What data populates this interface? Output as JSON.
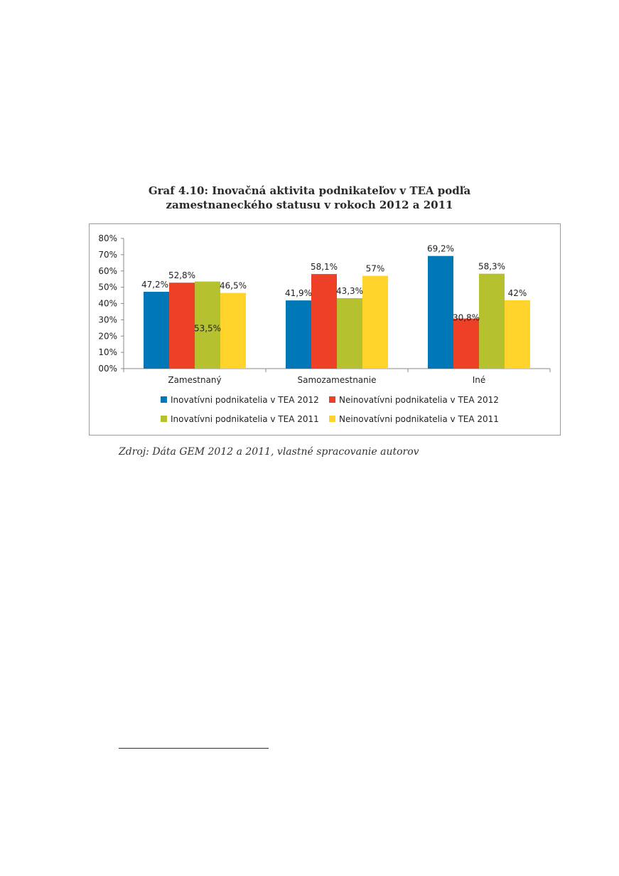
{
  "title_line1": "Graf 4.10: Inovačná aktivita podnikateľov v TEA podľa",
  "title_line2": "zamestnaneckého statusu v rokoch 2012 a 2011",
  "source": "Zdroj: Dáta GEM 2012 a 2011, vlastné spracovanie autorov",
  "chart_data": {
    "type": "bar",
    "categories": [
      "Zamestnaný",
      "Samozamestnanie",
      "Iné"
    ],
    "series": [
      {
        "name": "Inovatívni podnikatelia v TEA 2012",
        "color": "#0077b6",
        "values": [
          47.2,
          41.9,
          69.2
        ],
        "labels": [
          "47,2%",
          "41,9%",
          "69,2%"
        ]
      },
      {
        "name": "Neinovatívni podnikatelia v TEA 2012",
        "color": "#ee4027",
        "values": [
          52.8,
          58.1,
          30.8
        ],
        "labels": [
          "52,8%",
          "58,1%",
          "30,8%"
        ]
      },
      {
        "name": "Inovatívni podnikatelia v TEA 2011",
        "color": "#b5c12f",
        "values": [
          53.5,
          43.3,
          58.3
        ],
        "labels": [
          "53,5%",
          "43,3%",
          "58,3%"
        ]
      },
      {
        "name": "Neinovatívni podnikatelia v TEA 2011",
        "color": "#ffd32a",
        "values": [
          46.5,
          57.0,
          42.0
        ],
        "labels": [
          "46,5%",
          "57%",
          "42%"
        ]
      }
    ],
    "yticks": [
      "00%",
      "10%",
      "20%",
      "30%",
      "40%",
      "50%",
      "60%",
      "70%",
      "80%"
    ],
    "ylim": [
      0,
      80
    ],
    "grid": false,
    "legend_position": "bottom"
  }
}
